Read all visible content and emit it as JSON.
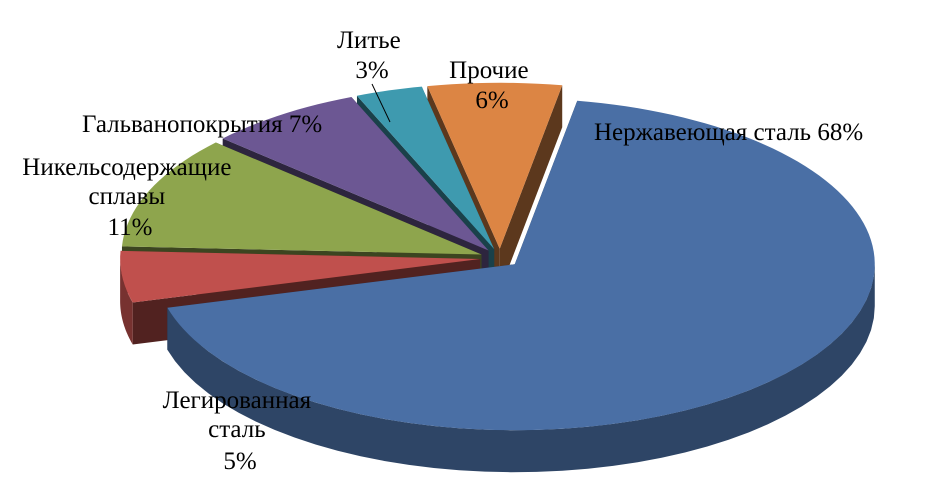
{
  "chart_data": {
    "type": "pie",
    "style": "3d-exploded",
    "categories": [
      "Нержавеющая сталь",
      "Легированная сталь",
      "Никельсодержащие сплавы",
      "Гальванопокрытия",
      "Литье",
      "Прочие"
    ],
    "values": [
      68,
      5,
      11,
      7,
      3,
      6
    ],
    "unit": "%",
    "colors": [
      "#4a6fa5",
      "#c0504d",
      "#8ea54d",
      "#6c5793",
      "#3e9aaf",
      "#dc8544"
    ],
    "labels": [
      {
        "lines": [
          "Нержавеющая сталь  68%"
        ]
      },
      {
        "lines": [
          "Легированная",
          "сталь",
          "5%"
        ]
      },
      {
        "lines": [
          "Никельсодержащие",
          "сплавы",
          "11%"
        ]
      },
      {
        "lines": [
          "Гальванопокрытия 7%"
        ]
      },
      {
        "lines": [
          "Литье",
          "3%"
        ]
      },
      {
        "lines": [
          "Прочие",
          "6%"
        ]
      }
    ],
    "title": "",
    "legend": "none"
  }
}
